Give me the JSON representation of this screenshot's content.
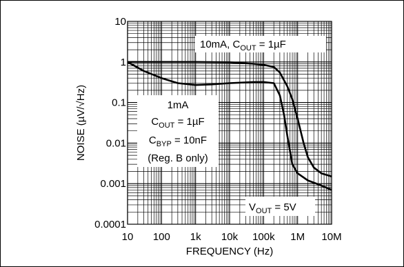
{
  "chart_data": {
    "type": "line",
    "xlabel": "FREQUENCY (Hz)",
    "ylabel": "NOISE (µV/√Hz)",
    "xscale": "log",
    "yscale": "log",
    "xlim": [
      10,
      10000000
    ],
    "ylim": [
      0.0001,
      10
    ],
    "grid": true,
    "x_ticks": [
      "10",
      "100",
      "1k",
      "10k",
      "100k",
      "1M",
      "10M"
    ],
    "y_ticks": [
      "10",
      "1",
      "0.1",
      "0.01",
      "0.001",
      "0.0001"
    ],
    "series": [
      {
        "label": [
          "10mA, C",
          "OUT",
          " = 1µF"
        ],
        "points": [
          [
            10,
            1.0
          ],
          [
            100,
            1.0
          ],
          [
            1000,
            1.0
          ],
          [
            10000,
            0.98
          ],
          [
            50000,
            0.9
          ],
          [
            100000,
            0.85
          ],
          [
            200000,
            0.75
          ],
          [
            300000,
            0.55
          ],
          [
            500000,
            0.25
          ],
          [
            700000,
            0.12
          ],
          [
            1000000,
            0.04
          ],
          [
            1500000,
            0.01
          ],
          [
            2000000,
            0.0045
          ],
          [
            3000000,
            0.0025
          ],
          [
            5000000,
            0.0018
          ],
          [
            10000000,
            0.0015
          ]
        ]
      },
      {
        "label": [
          "1mA",
          "C",
          "OUT",
          " = 1µF",
          "C",
          "BYP",
          " = 10nF",
          "(Reg. B only)"
        ],
        "points": [
          [
            10,
            1.0
          ],
          [
            30,
            0.6
          ],
          [
            100,
            0.4
          ],
          [
            300,
            0.3
          ],
          [
            1000,
            0.27
          ],
          [
            3000,
            0.28
          ],
          [
            10000,
            0.3
          ],
          [
            50000,
            0.32
          ],
          [
            100000,
            0.32
          ],
          [
            200000,
            0.3
          ],
          [
            300000,
            0.15
          ],
          [
            400000,
            0.05
          ],
          [
            500000,
            0.015
          ],
          [
            700000,
            0.003
          ],
          [
            1000000,
            0.0018
          ],
          [
            2000000,
            0.0012
          ],
          [
            5000000,
            0.0009
          ],
          [
            10000000,
            0.0007
          ]
        ]
      }
    ],
    "annotations": [
      {
        "parts": [
          "V",
          "OUT",
          " = 5V"
        ]
      }
    ]
  }
}
